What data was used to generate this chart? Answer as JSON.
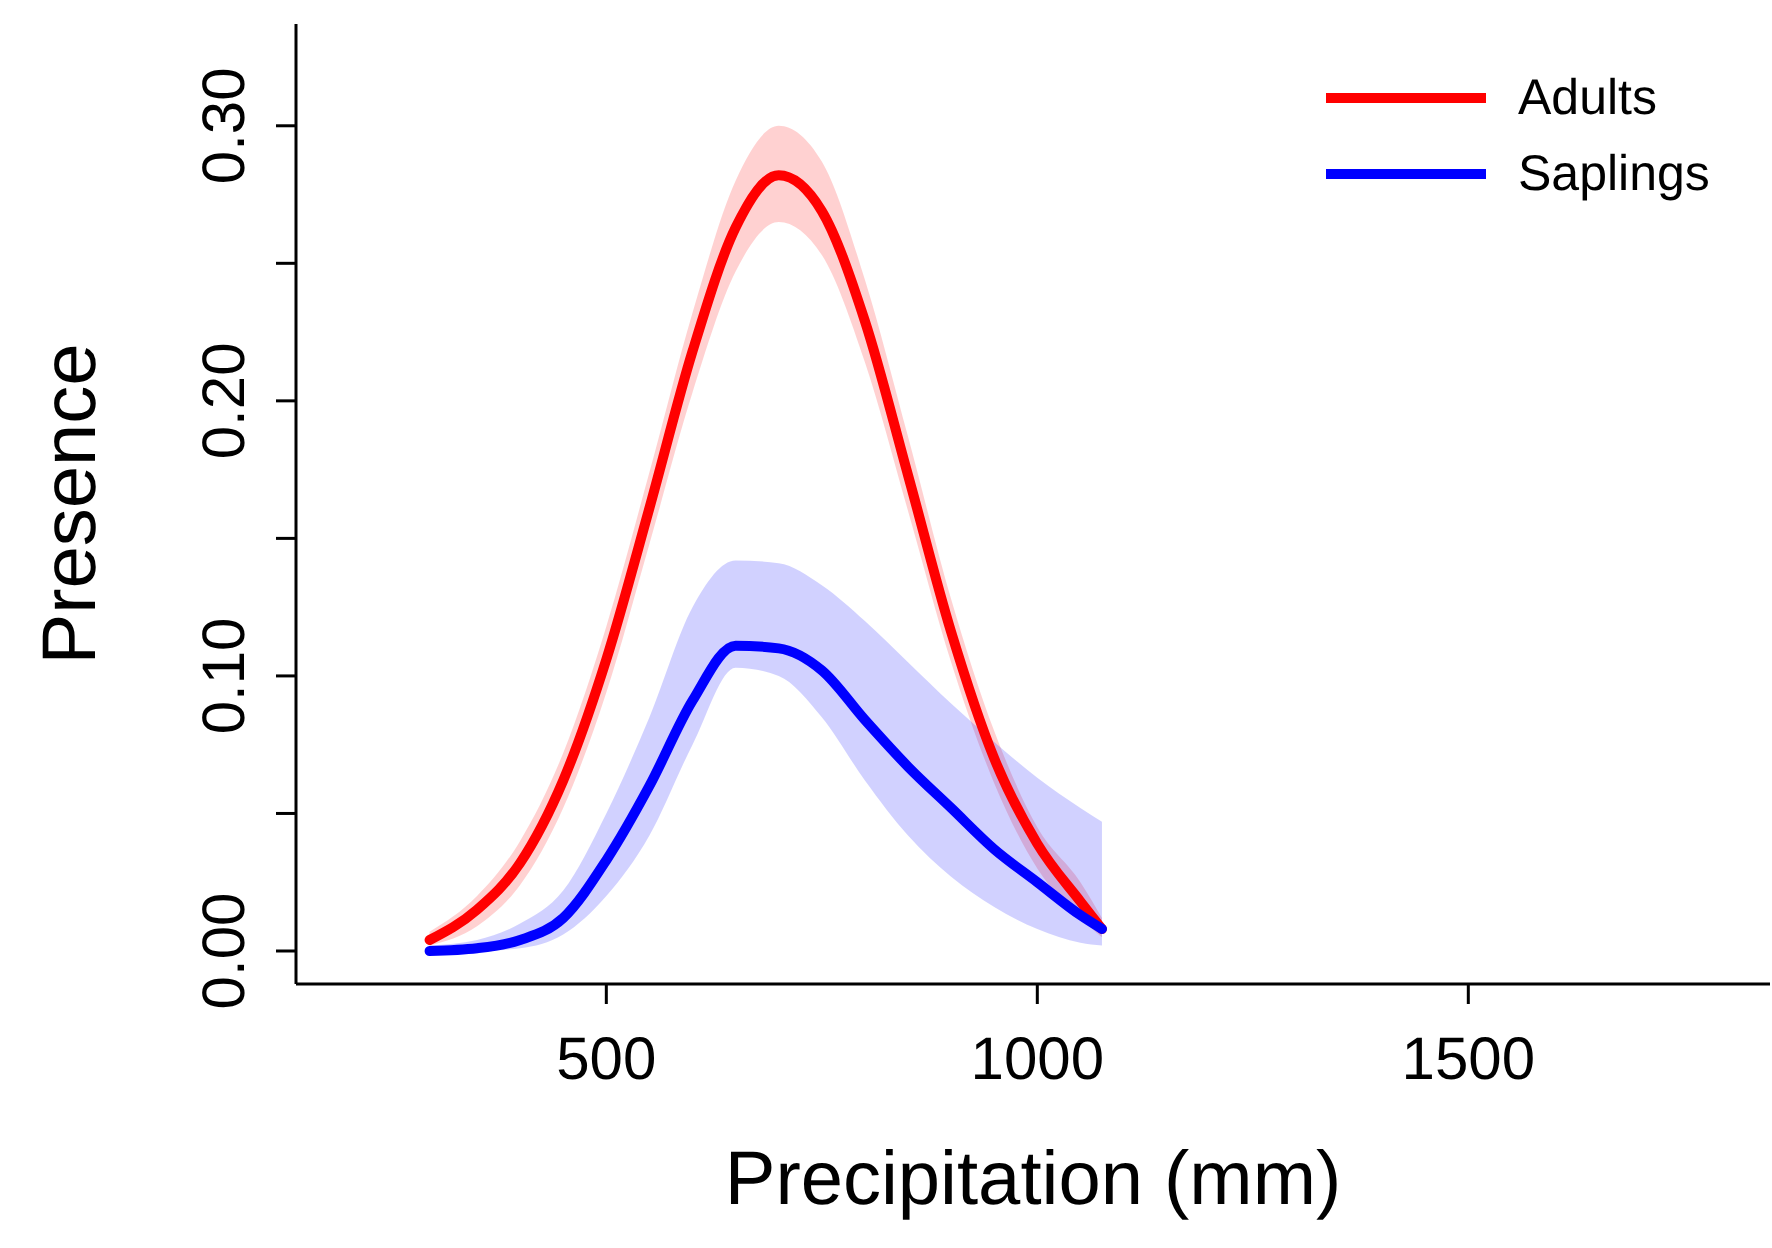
{
  "chart_data": {
    "type": "line",
    "xlabel": "Precipitation (mm)",
    "ylabel": "Presence",
    "x": [
      295,
      350,
      400,
      450,
      500,
      550,
      600,
      650,
      700,
      750,
      800,
      850,
      900,
      950,
      1000,
      1050,
      1075
    ],
    "series": [
      {
        "name": "Adults",
        "color": "#ff0000",
        "values": [
          0.004,
          0.015,
          0.032,
          0.062,
          0.106,
          0.161,
          0.218,
          0.263,
          0.282,
          0.269,
          0.229,
          0.173,
          0.116,
          0.07,
          0.039,
          0.018,
          0.008
        ],
        "lower": [
          0.002,
          0.009,
          0.024,
          0.052,
          0.094,
          0.148,
          0.203,
          0.247,
          0.265,
          0.253,
          0.214,
          0.16,
          0.105,
          0.061,
          0.03,
          0.012,
          0.005
        ],
        "upper": [
          0.007,
          0.02,
          0.04,
          0.072,
          0.118,
          0.174,
          0.232,
          0.28,
          0.3,
          0.287,
          0.244,
          0.187,
          0.128,
          0.08,
          0.045,
          0.025,
          0.012
        ]
      },
      {
        "name": "Saplings",
        "color": "#0000ff",
        "values": [
          0.0,
          0.001,
          0.004,
          0.012,
          0.033,
          0.06,
          0.091,
          0.111,
          0.11,
          0.102,
          0.084,
          0.067,
          0.052,
          0.037,
          0.025,
          0.013,
          0.008
        ],
        "lower": [
          0.0,
          0.0,
          0.001,
          0.006,
          0.02,
          0.042,
          0.075,
          0.103,
          0.1,
          0.085,
          0.062,
          0.042,
          0.027,
          0.016,
          0.008,
          0.003,
          0.002
        ],
        "upper": [
          0.002,
          0.004,
          0.01,
          0.022,
          0.05,
          0.085,
          0.125,
          0.142,
          0.141,
          0.133,
          0.12,
          0.105,
          0.09,
          0.076,
          0.063,
          0.052,
          0.047
        ]
      }
    ],
    "xlim": [
      140,
      1850
    ],
    "xticks": [
      500,
      1000,
      1500
    ],
    "ylim": [
      -0.012,
      0.337
    ],
    "yticks": [
      {
        "value": 0,
        "label": "0.00"
      },
      {
        "value": 0.05,
        "label": null
      },
      {
        "value": 0.1,
        "label": "0.10"
      },
      {
        "value": 0.15,
        "label": null
      },
      {
        "value": 0.2,
        "label": "0.20"
      },
      {
        "value": 0.25,
        "label": null
      },
      {
        "value": 0.3,
        "label": "0.30"
      }
    ],
    "legend": "top right",
    "grid": false,
    "marker": "none",
    "line_style": "solid"
  }
}
